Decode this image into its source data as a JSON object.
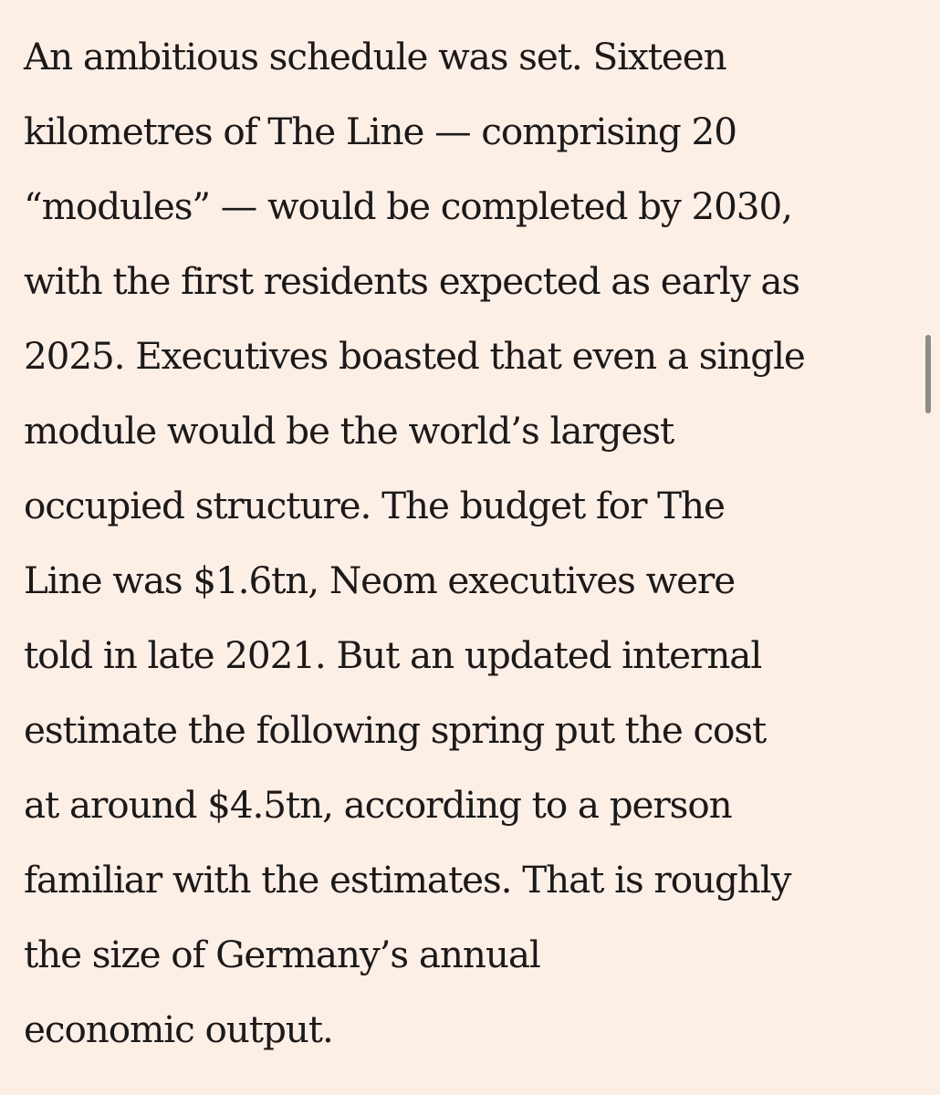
{
  "article": {
    "lines": [
      "An ambitious schedule was set. Sixteen",
      "kilometres of The Line — comprising 20",
      "“modules” — would be completed by 2030,",
      "with the first residents expected as early as",
      "2025. Executives boasted that even a single",
      "module would be the world’s largest",
      "occupied structure. The budget for The",
      "Line was $1.6tn, Neom executives were",
      "told in late 2021. But an updated internal",
      "estimate the following spring put the cost",
      "at around $4.5tn, according to a person",
      "familiar with the estimates. That is roughly",
      "the size of Germany’s annual",
      "economic output."
    ]
  },
  "colors": {
    "background": "#fcefe6",
    "text": "#1c1919",
    "scrollbar": "#8f8b88"
  }
}
